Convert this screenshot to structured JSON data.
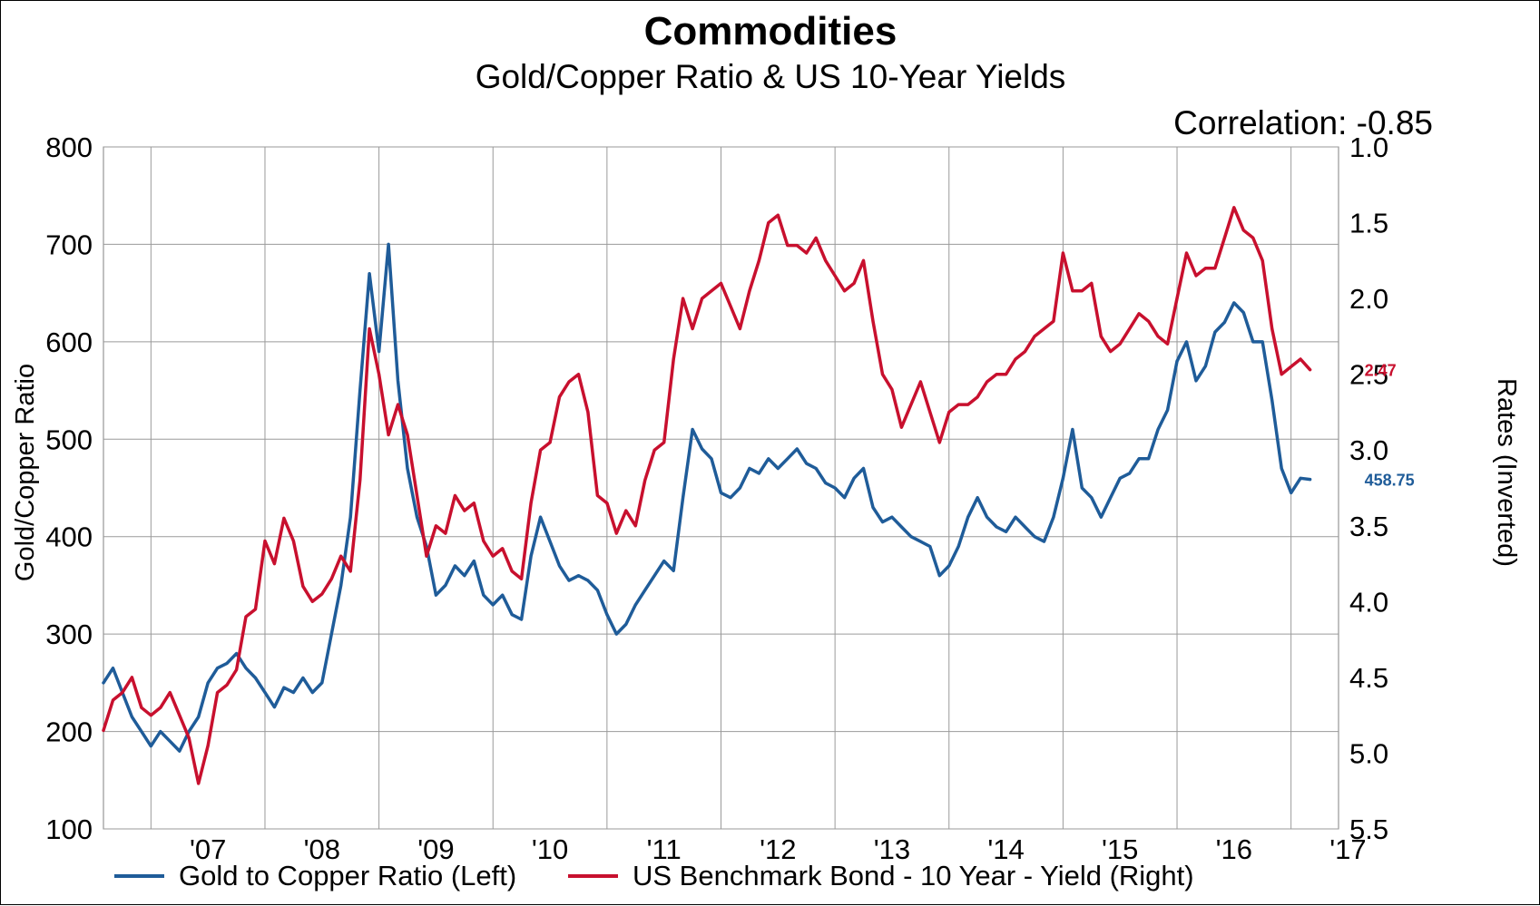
{
  "chart_data": {
    "type": "line",
    "title": "Commodities",
    "subtitle": "Gold/Copper Ratio & US 10-Year Yields",
    "annotation": "Correlation: -0.85",
    "ylabel": "Gold/Copper Ratio",
    "y2label": "Rates (Inverted)",
    "ylim": [
      100,
      800
    ],
    "y2lim": [
      1.0,
      5.5
    ],
    "y2_inverted": true,
    "y_ticks": [
      "800",
      "700",
      "600",
      "500",
      "400",
      "300",
      "200",
      "100"
    ],
    "y2_ticks": [
      "1.0",
      "1.5",
      "2.0",
      "2.5",
      "3.0",
      "3.5",
      "4.0",
      "4.5",
      "5.0",
      "5.5"
    ],
    "x_ticks": [
      "'07",
      "'08",
      "'09",
      "'10",
      "'11",
      "'12",
      "'13",
      "'14",
      "'15",
      "'16",
      "'17"
    ],
    "xlim": [
      "2006-08",
      "2017-06"
    ],
    "grid": true,
    "legend_position": "bottom",
    "series": [
      {
        "name": "Gold to Copper Ratio (Left)",
        "axis": "left",
        "color": "#1f5c99",
        "last_label": "458.75",
        "points": [
          [
            "2006-08",
            250
          ],
          [
            "2006-09",
            265
          ],
          [
            "2006-10",
            240
          ],
          [
            "2006-11",
            215
          ],
          [
            "2006-12",
            200
          ],
          [
            "2007-01",
            185
          ],
          [
            "2007-02",
            200
          ],
          [
            "2007-03",
            190
          ],
          [
            "2007-04",
            180
          ],
          [
            "2007-05",
            200
          ],
          [
            "2007-06",
            215
          ],
          [
            "2007-07",
            250
          ],
          [
            "2007-08",
            265
          ],
          [
            "2007-09",
            270
          ],
          [
            "2007-10",
            280
          ],
          [
            "2007-11",
            265
          ],
          [
            "2007-12",
            255
          ],
          [
            "2008-01",
            240
          ],
          [
            "2008-02",
            225
          ],
          [
            "2008-03",
            245
          ],
          [
            "2008-04",
            240
          ],
          [
            "2008-05",
            255
          ],
          [
            "2008-06",
            240
          ],
          [
            "2008-07",
            250
          ],
          [
            "2008-08",
            300
          ],
          [
            "2008-09",
            350
          ],
          [
            "2008-10",
            420
          ],
          [
            "2008-11",
            550
          ],
          [
            "2008-12",
            670
          ],
          [
            "2009-01",
            590
          ],
          [
            "2009-02",
            700
          ],
          [
            "2009-03",
            560
          ],
          [
            "2009-04",
            470
          ],
          [
            "2009-05",
            420
          ],
          [
            "2009-06",
            390
          ],
          [
            "2009-07",
            340
          ],
          [
            "2009-08",
            350
          ],
          [
            "2009-09",
            370
          ],
          [
            "2009-10",
            360
          ],
          [
            "2009-11",
            375
          ],
          [
            "2009-12",
            340
          ],
          [
            "2010-01",
            330
          ],
          [
            "2010-02",
            340
          ],
          [
            "2010-03",
            320
          ],
          [
            "2010-04",
            315
          ],
          [
            "2010-05",
            380
          ],
          [
            "2010-06",
            420
          ],
          [
            "2010-07",
            395
          ],
          [
            "2010-08",
            370
          ],
          [
            "2010-09",
            355
          ],
          [
            "2010-10",
            360
          ],
          [
            "2010-11",
            355
          ],
          [
            "2010-12",
            345
          ],
          [
            "2011-01",
            320
          ],
          [
            "2011-02",
            300
          ],
          [
            "2011-03",
            310
          ],
          [
            "2011-04",
            330
          ],
          [
            "2011-05",
            345
          ],
          [
            "2011-06",
            360
          ],
          [
            "2011-07",
            375
          ],
          [
            "2011-08",
            365
          ],
          [
            "2011-09",
            440
          ],
          [
            "2011-10",
            510
          ],
          [
            "2011-11",
            490
          ],
          [
            "2011-12",
            480
          ],
          [
            "2012-01",
            445
          ],
          [
            "2012-02",
            440
          ],
          [
            "2012-03",
            450
          ],
          [
            "2012-04",
            470
          ],
          [
            "2012-05",
            465
          ],
          [
            "2012-06",
            480
          ],
          [
            "2012-07",
            470
          ],
          [
            "2012-08",
            480
          ],
          [
            "2012-09",
            490
          ],
          [
            "2012-10",
            475
          ],
          [
            "2012-11",
            470
          ],
          [
            "2012-12",
            455
          ],
          [
            "2013-01",
            450
          ],
          [
            "2013-02",
            440
          ],
          [
            "2013-03",
            460
          ],
          [
            "2013-04",
            470
          ],
          [
            "2013-05",
            430
          ],
          [
            "2013-06",
            415
          ],
          [
            "2013-07",
            420
          ],
          [
            "2013-08",
            410
          ],
          [
            "2013-09",
            400
          ],
          [
            "2013-10",
            395
          ],
          [
            "2013-11",
            390
          ],
          [
            "2013-12",
            360
          ],
          [
            "2014-01",
            370
          ],
          [
            "2014-02",
            390
          ],
          [
            "2014-03",
            420
          ],
          [
            "2014-04",
            440
          ],
          [
            "2014-05",
            420
          ],
          [
            "2014-06",
            410
          ],
          [
            "2014-07",
            405
          ],
          [
            "2014-08",
            420
          ],
          [
            "2014-09",
            410
          ],
          [
            "2014-10",
            400
          ],
          [
            "2014-11",
            395
          ],
          [
            "2014-12",
            420
          ],
          [
            "2015-01",
            460
          ],
          [
            "2015-02",
            510
          ],
          [
            "2015-03",
            450
          ],
          [
            "2015-04",
            440
          ],
          [
            "2015-05",
            420
          ],
          [
            "2015-06",
            440
          ],
          [
            "2015-07",
            460
          ],
          [
            "2015-08",
            465
          ],
          [
            "2015-09",
            480
          ],
          [
            "2015-10",
            480
          ],
          [
            "2015-11",
            510
          ],
          [
            "2015-12",
            530
          ],
          [
            "2016-01",
            580
          ],
          [
            "2016-02",
            600
          ],
          [
            "2016-03",
            560
          ],
          [
            "2016-04",
            575
          ],
          [
            "2016-05",
            610
          ],
          [
            "2016-06",
            620
          ],
          [
            "2016-07",
            640
          ],
          [
            "2016-08",
            630
          ],
          [
            "2016-09",
            600
          ],
          [
            "2016-10",
            600
          ],
          [
            "2016-11",
            540
          ],
          [
            "2016-12",
            470
          ],
          [
            "2017-01",
            445
          ],
          [
            "2017-02",
            460
          ],
          [
            "2017-03",
            458.75
          ]
        ]
      },
      {
        "name": "US Benchmark Bond - 10 Year - Yield (Right)",
        "axis": "right",
        "color": "#c8102e",
        "last_label": "2.47",
        "points": [
          [
            "2006-08",
            4.85
          ],
          [
            "2006-09",
            4.65
          ],
          [
            "2006-10",
            4.6
          ],
          [
            "2006-11",
            4.5
          ],
          [
            "2006-12",
            4.7
          ],
          [
            "2007-01",
            4.75
          ],
          [
            "2007-02",
            4.7
          ],
          [
            "2007-03",
            4.6
          ],
          [
            "2007-04",
            4.75
          ],
          [
            "2007-05",
            4.9
          ],
          [
            "2007-06",
            5.2
          ],
          [
            "2007-07",
            4.95
          ],
          [
            "2007-08",
            4.6
          ],
          [
            "2007-09",
            4.55
          ],
          [
            "2007-10",
            4.45
          ],
          [
            "2007-11",
            4.1
          ],
          [
            "2007-12",
            4.05
          ],
          [
            "2008-01",
            3.6
          ],
          [
            "2008-02",
            3.75
          ],
          [
            "2008-03",
            3.45
          ],
          [
            "2008-04",
            3.6
          ],
          [
            "2008-05",
            3.9
          ],
          [
            "2008-06",
            4.0
          ],
          [
            "2008-07",
            3.95
          ],
          [
            "2008-08",
            3.85
          ],
          [
            "2008-09",
            3.7
          ],
          [
            "2008-10",
            3.8
          ],
          [
            "2008-11",
            3.2
          ],
          [
            "2008-12",
            2.2
          ],
          [
            "2009-01",
            2.5
          ],
          [
            "2009-02",
            2.9
          ],
          [
            "2009-03",
            2.7
          ],
          [
            "2009-04",
            2.9
          ],
          [
            "2009-05",
            3.3
          ],
          [
            "2009-06",
            3.7
          ],
          [
            "2009-07",
            3.5
          ],
          [
            "2009-08",
            3.55
          ],
          [
            "2009-09",
            3.3
          ],
          [
            "2009-10",
            3.4
          ],
          [
            "2009-11",
            3.35
          ],
          [
            "2009-12",
            3.6
          ],
          [
            "2010-01",
            3.7
          ],
          [
            "2010-02",
            3.65
          ],
          [
            "2010-03",
            3.8
          ],
          [
            "2010-04",
            3.85
          ],
          [
            "2010-05",
            3.35
          ],
          [
            "2010-06",
            3.0
          ],
          [
            "2010-07",
            2.95
          ],
          [
            "2010-08",
            2.65
          ],
          [
            "2010-09",
            2.55
          ],
          [
            "2010-10",
            2.5
          ],
          [
            "2010-11",
            2.75
          ],
          [
            "2010-12",
            3.3
          ],
          [
            "2011-01",
            3.35
          ],
          [
            "2011-02",
            3.55
          ],
          [
            "2011-03",
            3.4
          ],
          [
            "2011-04",
            3.5
          ],
          [
            "2011-05",
            3.2
          ],
          [
            "2011-06",
            3.0
          ],
          [
            "2011-07",
            2.95
          ],
          [
            "2011-08",
            2.4
          ],
          [
            "2011-09",
            2.0
          ],
          [
            "2011-10",
            2.2
          ],
          [
            "2011-11",
            2.0
          ],
          [
            "2011-12",
            1.95
          ],
          [
            "2012-01",
            1.9
          ],
          [
            "2012-02",
            2.05
          ],
          [
            "2012-03",
            2.2
          ],
          [
            "2012-04",
            1.95
          ],
          [
            "2012-05",
            1.75
          ],
          [
            "2012-06",
            1.5
          ],
          [
            "2012-07",
            1.45
          ],
          [
            "2012-08",
            1.65
          ],
          [
            "2012-09",
            1.65
          ],
          [
            "2012-10",
            1.7
          ],
          [
            "2012-11",
            1.6
          ],
          [
            "2012-12",
            1.75
          ],
          [
            "2013-01",
            1.85
          ],
          [
            "2013-02",
            1.95
          ],
          [
            "2013-03",
            1.9
          ],
          [
            "2013-04",
            1.75
          ],
          [
            "2013-05",
            2.15
          ],
          [
            "2013-06",
            2.5
          ],
          [
            "2013-07",
            2.6
          ],
          [
            "2013-08",
            2.85
          ],
          [
            "2013-09",
            2.7
          ],
          [
            "2013-10",
            2.55
          ],
          [
            "2013-11",
            2.75
          ],
          [
            "2013-12",
            2.95
          ],
          [
            "2014-01",
            2.75
          ],
          [
            "2014-02",
            2.7
          ],
          [
            "2014-03",
            2.7
          ],
          [
            "2014-04",
            2.65
          ],
          [
            "2014-05",
            2.55
          ],
          [
            "2014-06",
            2.5
          ],
          [
            "2014-07",
            2.5
          ],
          [
            "2014-08",
            2.4
          ],
          [
            "2014-09",
            2.35
          ],
          [
            "2014-10",
            2.25
          ],
          [
            "2014-11",
            2.2
          ],
          [
            "2014-12",
            2.15
          ],
          [
            "2015-01",
            1.7
          ],
          [
            "2015-02",
            1.95
          ],
          [
            "2015-03",
            1.95
          ],
          [
            "2015-04",
            1.9
          ],
          [
            "2015-05",
            2.25
          ],
          [
            "2015-06",
            2.35
          ],
          [
            "2015-07",
            2.3
          ],
          [
            "2015-08",
            2.2
          ],
          [
            "2015-09",
            2.1
          ],
          [
            "2015-10",
            2.15
          ],
          [
            "2015-11",
            2.25
          ],
          [
            "2015-12",
            2.3
          ],
          [
            "2016-01",
            2.0
          ],
          [
            "2016-02",
            1.7
          ],
          [
            "2016-03",
            1.85
          ],
          [
            "2016-04",
            1.8
          ],
          [
            "2016-05",
            1.8
          ],
          [
            "2016-06",
            1.6
          ],
          [
            "2016-07",
            1.4
          ],
          [
            "2016-08",
            1.55
          ],
          [
            "2016-09",
            1.6
          ],
          [
            "2016-10",
            1.75
          ],
          [
            "2016-11",
            2.2
          ],
          [
            "2016-12",
            2.5
          ],
          [
            "2017-01",
            2.45
          ],
          [
            "2017-02",
            2.4
          ],
          [
            "2017-03",
            2.47
          ]
        ]
      }
    ]
  }
}
